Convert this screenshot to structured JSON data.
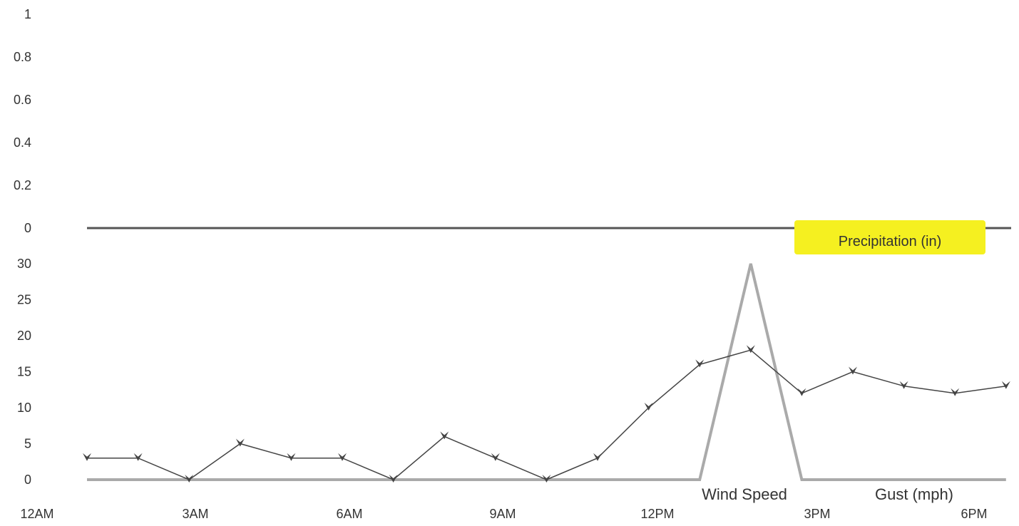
{
  "chart_data": [
    {
      "type": "line",
      "title": "",
      "xlabel": "",
      "ylabel": "",
      "ylim": [
        0,
        1
      ],
      "yticks": [
        "1",
        "0.8",
        "0.6",
        "0.4",
        "0.2",
        "0"
      ],
      "series": [
        {
          "name": "Precipitation (in)",
          "x": [
            "12AM",
            "6PM"
          ],
          "values": [
            0,
            0
          ]
        }
      ],
      "legend": "bottom-right",
      "legend_highlight": "#f5f020",
      "colors": {
        "line": "#555555"
      }
    },
    {
      "type": "line",
      "title": "",
      "xlabel": "",
      "ylabel": "",
      "ylim": [
        0,
        30
      ],
      "yticks": [
        "30",
        "25",
        "20",
        "15",
        "10",
        "5",
        "0"
      ],
      "x_ticks": [
        "12AM",
        "3AM",
        "6AM",
        "9AM",
        "12PM",
        "3PM",
        "6PM"
      ],
      "x_hours": [
        1,
        2,
        3,
        4,
        5,
        6,
        7,
        8,
        9,
        10,
        11,
        12,
        13,
        14,
        15,
        16,
        17,
        18,
        19
      ],
      "series": [
        {
          "name": "Wind Speed",
          "values": [
            3,
            3,
            0,
            5,
            3,
            3,
            0,
            6,
            3,
            0,
            3,
            10,
            16,
            18,
            12,
            15,
            13,
            12,
            13
          ]
        },
        {
          "name": "Gust (mph)",
          "values": [
            0,
            0,
            0,
            0,
            0,
            0,
            0,
            0,
            0,
            0,
            0,
            0,
            0,
            30,
            0,
            0,
            0,
            0,
            0
          ]
        }
      ],
      "legend": "bottom-right",
      "colors": {
        "wind": "#444444",
        "gust": "#aaaaaa"
      }
    }
  ]
}
